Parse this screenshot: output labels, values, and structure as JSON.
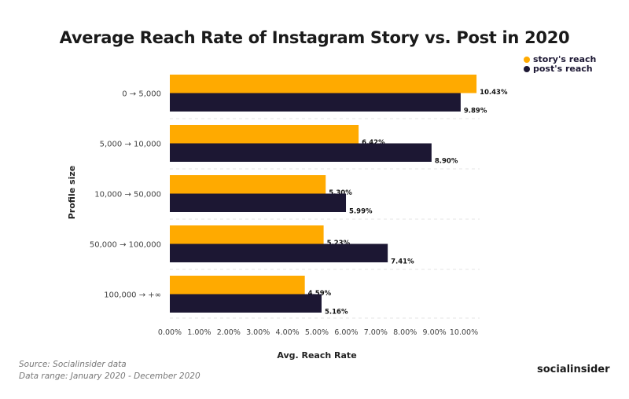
{
  "chart_data": {
    "type": "bar",
    "orientation": "horizontal",
    "title": "Average Reach Rate of Instagram Story vs. Post in 2020",
    "xlabel": "Avg. Reach Rate",
    "ylabel": "Profile size",
    "categories": [
      "0 → 5,000",
      "5,000 → 10,000",
      "10,000 → 50,000",
      "50,000 → 100,000",
      "100,000 → +∞"
    ],
    "series": [
      {
        "name": "story's reach",
        "color": "#FFAA00",
        "values": [
          10.43,
          6.42,
          5.3,
          5.23,
          4.59
        ],
        "labels": [
          "10.43%",
          "6.42%",
          "5.30%",
          "5.23%",
          "4.59%"
        ]
      },
      {
        "name": "post's reach",
        "color": "#1C1733",
        "values": [
          9.89,
          8.9,
          5.99,
          7.41,
          5.16
        ],
        "labels": [
          "9.89%",
          "8.90%",
          "5.99%",
          "7.41%",
          "5.16%"
        ]
      }
    ],
    "xlim": [
      0,
      10
    ],
    "xticks": [
      "0.00%",
      "1.00%",
      "2.00%",
      "3.00%",
      "4.00%",
      "5.00%",
      "6.00%",
      "7.00%",
      "8.00%",
      "9.00%",
      "10.00%"
    ],
    "grid": "dashed horizontal separators",
    "legend": "top-right"
  },
  "footer": {
    "source": "Source: Socialinsider data",
    "range": "Data range: January 2020 - December 2020",
    "logo": "socialinsider"
  }
}
